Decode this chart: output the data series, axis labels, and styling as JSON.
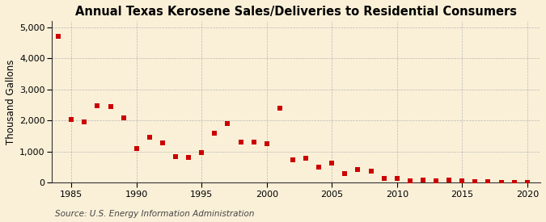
{
  "title": "Annual Texas Kerosene Sales/Deliveries to Residential Consumers",
  "ylabel": "Thousand Gallons",
  "source": "Source: U.S. Energy Information Administration",
  "years": [
    1984,
    1985,
    1986,
    1987,
    1988,
    1989,
    1990,
    1991,
    1992,
    1993,
    1994,
    1995,
    1996,
    1997,
    1998,
    1999,
    2000,
    2001,
    2002,
    2003,
    2004,
    2005,
    2006,
    2007,
    2008,
    2009,
    2010,
    2011,
    2012,
    2013,
    2014,
    2015,
    2016,
    2017,
    2018,
    2019,
    2020
  ],
  "values": [
    4700,
    2020,
    1950,
    2470,
    2450,
    2080,
    1100,
    1450,
    1280,
    840,
    820,
    960,
    1600,
    1890,
    1300,
    1300,
    1260,
    2390,
    740,
    780,
    490,
    640,
    290,
    420,
    360,
    130,
    140,
    60,
    80,
    70,
    80,
    60,
    40,
    30,
    20,
    10,
    5
  ],
  "marker_color": "#cc0000",
  "marker_size": 18,
  "background_color": "#faf0d8",
  "grid_color": "#aaaaaa",
  "xlim": [
    1983.5,
    2021
  ],
  "ylim": [
    0,
    5200
  ],
  "yticks": [
    0,
    1000,
    2000,
    3000,
    4000,
    5000
  ],
  "xticks": [
    1985,
    1990,
    1995,
    2000,
    2005,
    2010,
    2015,
    2020
  ],
  "title_fontsize": 10.5,
  "label_fontsize": 8.5,
  "tick_fontsize": 8,
  "source_fontsize": 7.5
}
